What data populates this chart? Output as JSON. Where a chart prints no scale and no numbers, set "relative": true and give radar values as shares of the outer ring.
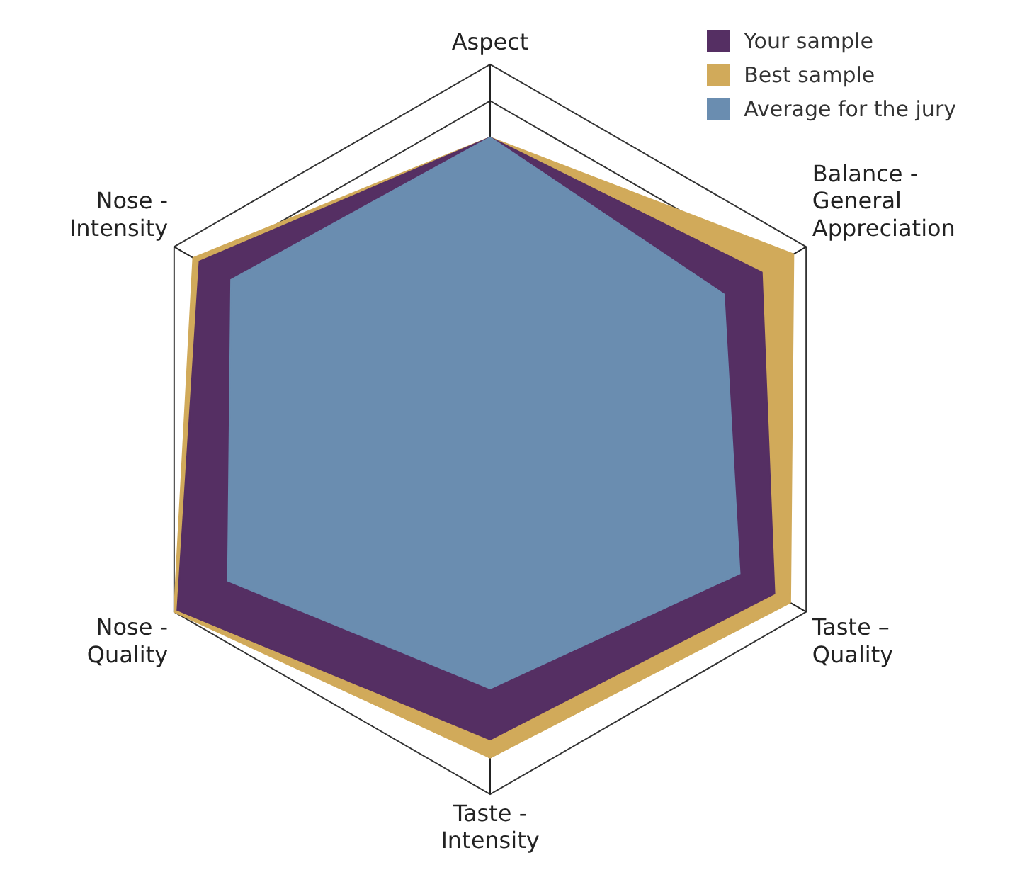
{
  "chart_data": {
    "type": "radar",
    "relative": true,
    "categories": [
      "Aspect",
      "Balance - General Appreciation",
      "Taste – Quality",
      "Taste - Intensity",
      "Nose - Quality",
      "Nose - Intensity"
    ],
    "series": [
      {
        "name": "Your sample",
        "color": "#552f63",
        "values": [
          0.8,
          0.86,
          0.9,
          0.85,
          0.99,
          0.92
        ]
      },
      {
        "name": "Best sample",
        "color": "#d1aa5a",
        "values": [
          0.8,
          0.96,
          0.95,
          0.9,
          1.0,
          0.94
        ]
      },
      {
        "name": "Average for the jury",
        "color": "#6a8db0",
        "values": [
          0.8,
          0.74,
          0.79,
          0.71,
          0.83,
          0.82
        ]
      }
    ],
    "grid": true,
    "legend": "top right",
    "marker": "none"
  }
}
